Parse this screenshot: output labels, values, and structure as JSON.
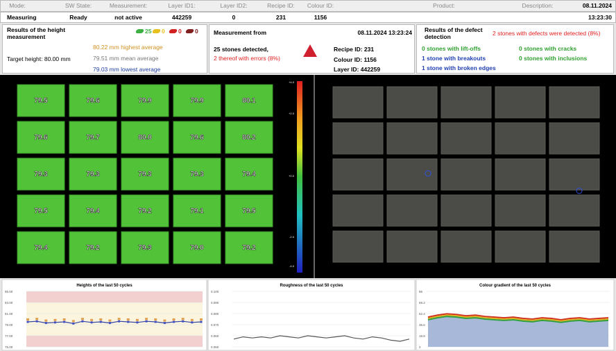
{
  "header": {
    "labels": [
      "Mode:",
      "SW State:",
      "Measurement:",
      "Layer ID1:",
      "Layer ID2:",
      "Recipe ID:",
      "Colour ID:",
      "Product:",
      "Description:"
    ],
    "values": [
      "Measuring",
      "Ready",
      "not active",
      "442259",
      "0",
      "231",
      "1156"
    ],
    "date": "08.11.2024",
    "time": "13:23:30"
  },
  "height_panel": {
    "title": "Results of the height measurement",
    "legend": [
      {
        "color": "#3cb043",
        "count": "25"
      },
      {
        "color": "#e8c020",
        "count": "0"
      },
      {
        "color": "#d02020",
        "count": "0"
      },
      {
        "color": "#802020",
        "count": "0"
      }
    ],
    "target": "Target height: 80.00 mm",
    "highest": "80.22 mm highest average",
    "mean": "79.51 mm mean average",
    "lowest": "79.03 mm lowest average"
  },
  "measurement_panel": {
    "title": "Measurement from",
    "timestamp": "08.11.2024 13:23:24",
    "detected": "25 stones detected,",
    "errors": "2 thereof with errors (8%)",
    "recipe": "Recipe ID: 231",
    "colour": "Colour ID: 1156",
    "layer": "Layer ID:  442259"
  },
  "defect_panel": {
    "title": "Results of the defect detection",
    "summary": "2 stones with defects were detected (8%)",
    "items": [
      "0 stones with lift-offs",
      "0 stones with cracks",
      "1 stone with breakouts",
      "0 stones with inclusions",
      "1 stone with broken edges"
    ]
  },
  "height_tiles": [
    [
      "79.5",
      "79.6",
      "79.9",
      "79.9",
      "80.1"
    ],
    [
      "79.6",
      "79.7",
      "80.0",
      "79.6",
      "80.2"
    ],
    [
      "79.3",
      "79.3",
      "79.3",
      "79.3",
      "79.4"
    ],
    [
      "79.5",
      "79.4",
      "79.2",
      "79.1",
      "79.5"
    ],
    [
      "79.4",
      "79.2",
      "79.3",
      "79.0",
      "79.2"
    ]
  ],
  "colorbar_ticks": [
    "+4.0",
    "+2.0",
    "+0.0",
    "-2.0",
    "-4.0"
  ],
  "charts": [
    {
      "title": "Heights of the last 50 cycles",
      "yticks": [
        "85.00",
        "83.00",
        "81.00",
        "79.00",
        "77.00",
        "75.00"
      ],
      "ylim": [
        75,
        85
      ],
      "values": [
        79.5,
        79.6,
        79.3,
        79.4,
        79.5,
        79.2,
        79.6,
        79.4,
        79.5,
        79.3,
        79.6,
        79.5,
        79.4,
        79.6,
        79.5,
        79.3,
        79.5,
        79.6,
        79.4,
        79.5
      ]
    },
    {
      "title": "Roughness of the last 50 cycles",
      "yticks": [
        "0.100",
        "0.090",
        "0.080",
        "0.070",
        "0.060",
        "0.050"
      ],
      "ylim": [
        0.05,
        0.1
      ],
      "values": [
        0.057,
        0.059,
        0.058,
        0.059,
        0.058,
        0.06,
        0.059,
        0.058,
        0.06,
        0.059,
        0.058,
        0.059,
        0.06,
        0.058,
        0.057,
        0.059,
        0.058,
        0.056,
        0.055,
        0.057
      ]
    },
    {
      "title": "Colour gradient of the last 50 cycles",
      "yticks": [
        "86",
        "69.2",
        "52.4",
        "35.6",
        "18.8",
        "2"
      ],
      "ylim": [
        2,
        86
      ],
      "series": [
        {
          "color": "#d03020",
          "values": [
            47,
            50,
            52,
            51,
            49,
            50,
            48,
            47,
            46,
            47,
            45,
            44,
            46,
            45,
            43,
            45,
            46,
            44,
            45,
            46
          ]
        },
        {
          "color": "#e0b020",
          "values": [
            45,
            48,
            50,
            49,
            47,
            48,
            46,
            45,
            44,
            45,
            43,
            42,
            44,
            43,
            41,
            43,
            44,
            42,
            43,
            44
          ]
        },
        {
          "color": "#30a040",
          "values": [
            43,
            46,
            48,
            47,
            45,
            46,
            44,
            43,
            42,
            43,
            41,
            40,
            42,
            41,
            39,
            41,
            42,
            40,
            41,
            42
          ]
        }
      ]
    }
  ]
}
